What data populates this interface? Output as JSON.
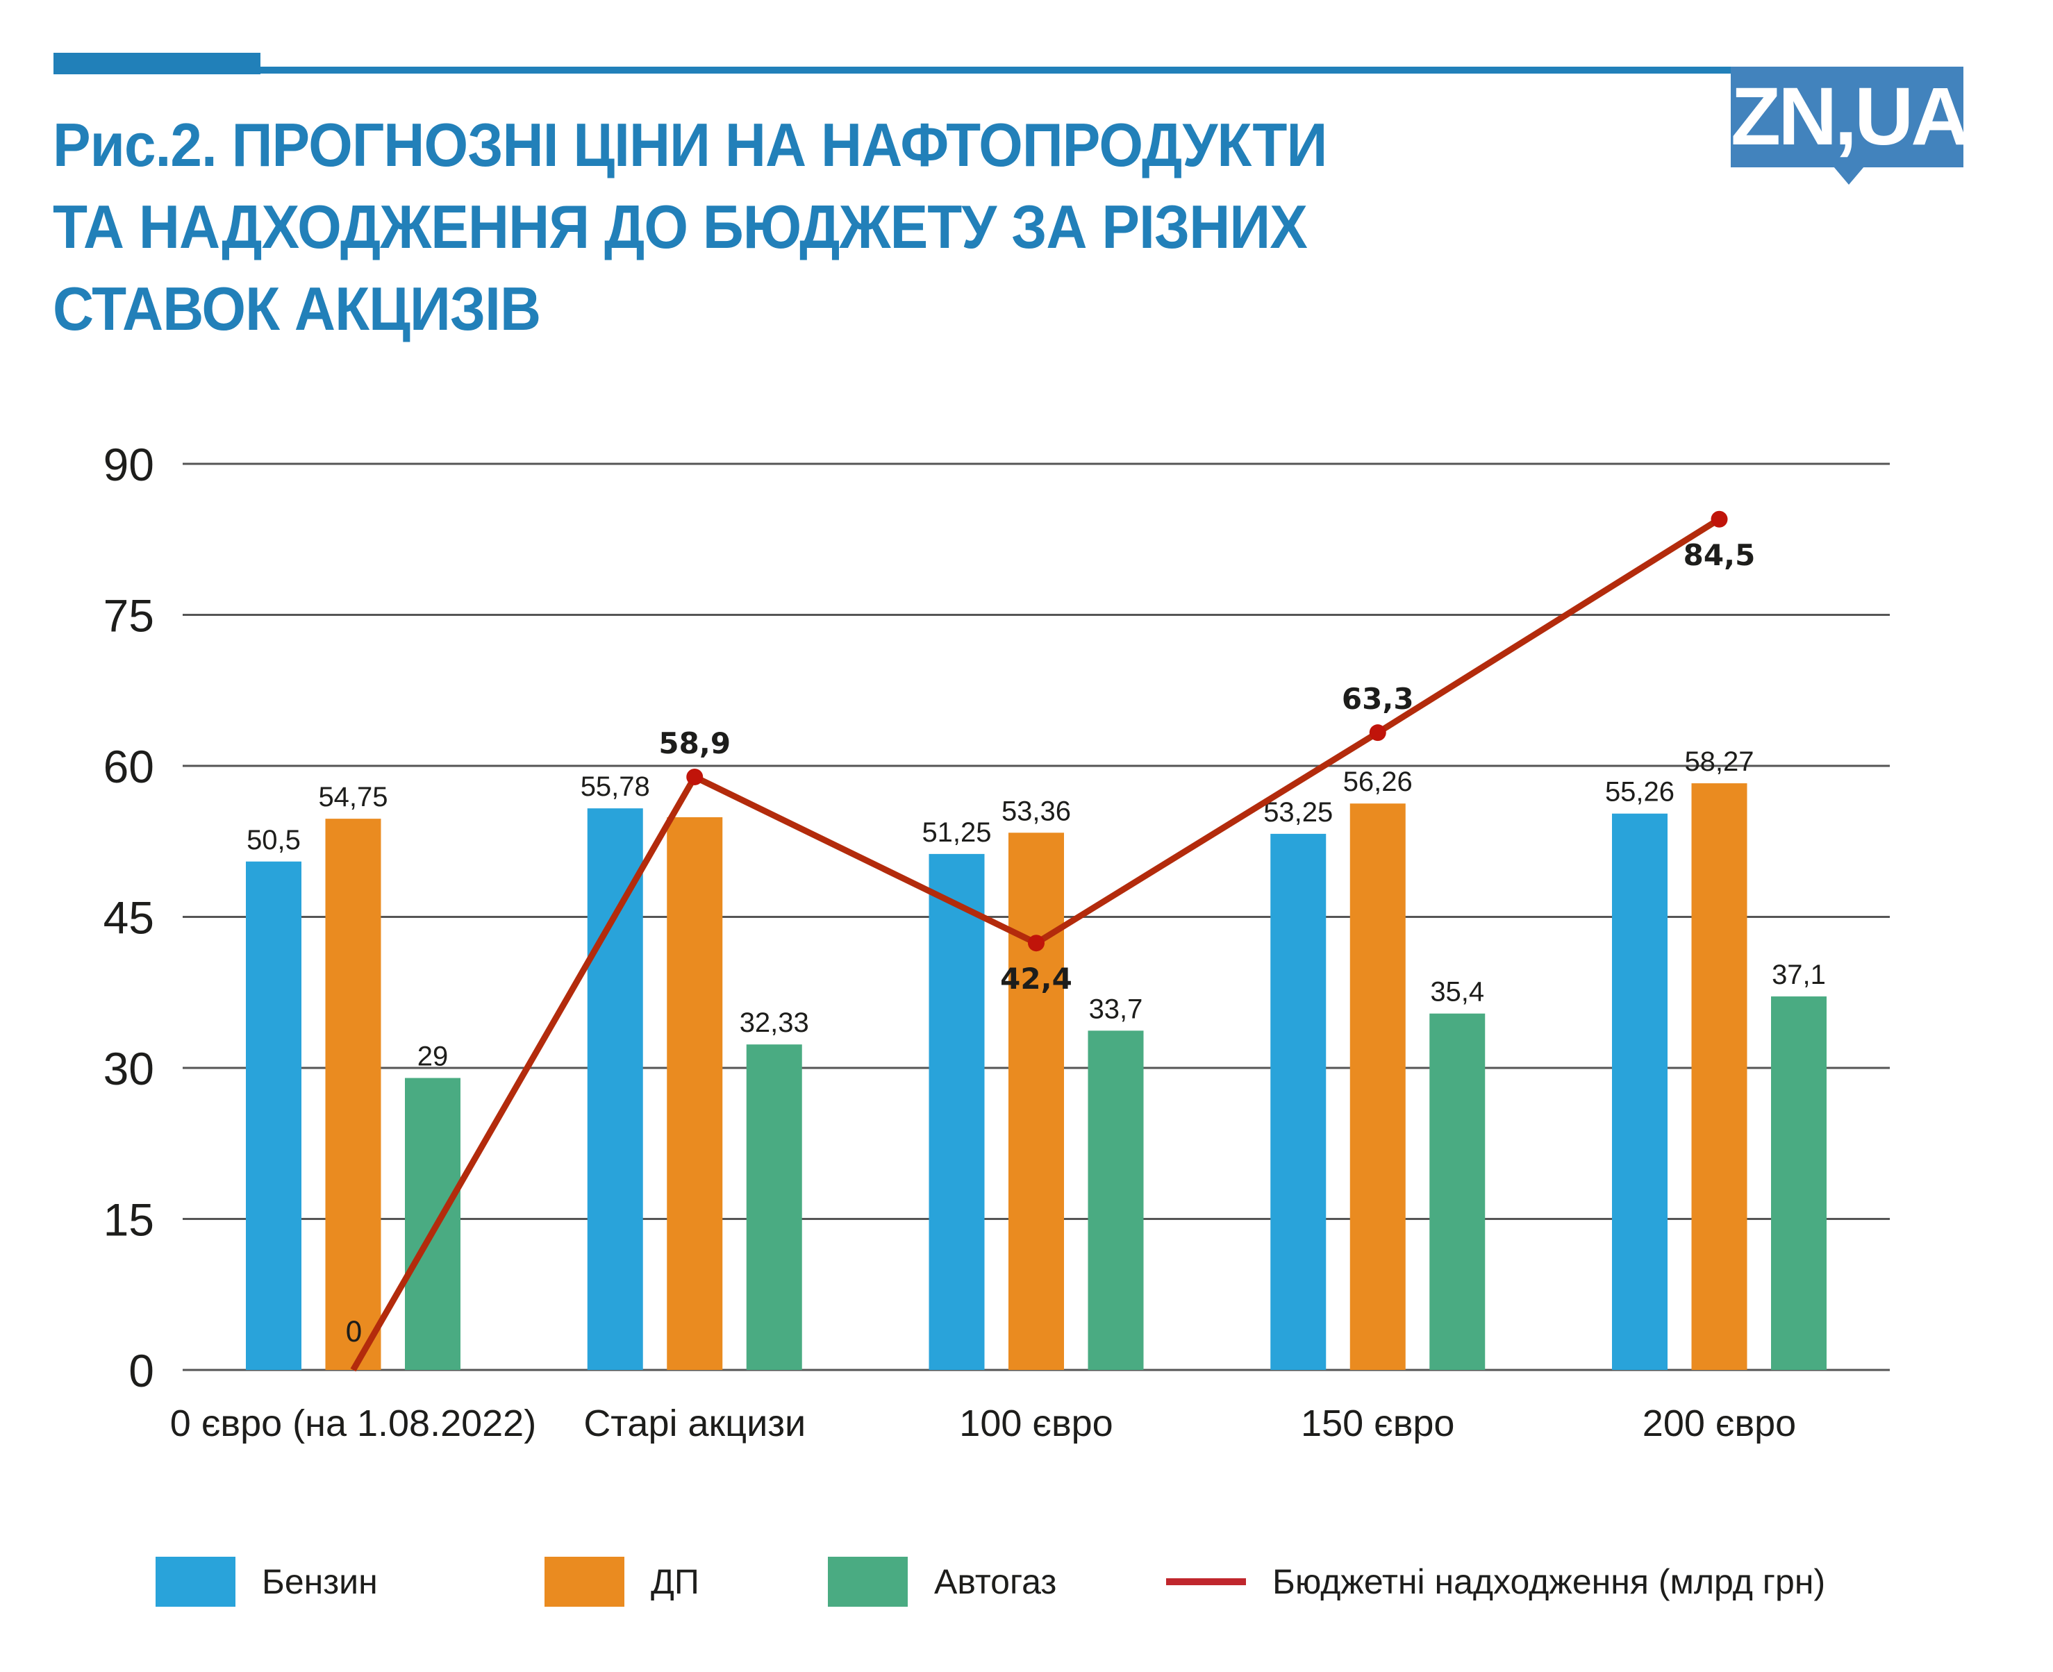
{
  "header": {
    "title_lines": [
      "Рис.2. ПРОГНОЗНІ ЦІНИ НА НАФТОПРОДУКТИ",
      "ТА НАДХОДЖЕННЯ ДО БЮДЖЕТУ ЗА РІЗНИХ",
      "СТАВОК АКЦИЗІВ"
    ],
    "logo_text": "ZN,UA"
  },
  "colors": {
    "title": "#2280b9",
    "benzin": "#29a3da",
    "dp": "#ea8b20",
    "autogas": "#4aab82",
    "budget_line": "#b32b0c",
    "budget_dot": "#c0140a",
    "grid": "#555555"
  },
  "chart_data": {
    "type": "bar",
    "title": "Рис.2. ПРОГНОЗНІ ЦІНИ НА НАФТОПРОДУКТИ ТА НАДХОДЖЕННЯ ДО БЮДЖЕТУ ЗА РІЗНИХ СТАВОК АКЦИЗІВ",
    "xlabel": "",
    "ylabel": "",
    "ylim": [
      0,
      90
    ],
    "yticks": [
      "0",
      "15",
      "30",
      "45",
      "60",
      "75",
      "90"
    ],
    "ytick_values": [
      0,
      15,
      30,
      45,
      60,
      75,
      90
    ],
    "grid": true,
    "legend_position": "bottom",
    "categories": [
      "0 євро (на 1.08.2022)",
      "Старі акцизи",
      "100 євро",
      "150 євро",
      "200 євро"
    ],
    "series": [
      {
        "name": "Бензин",
        "type": "bar",
        "color_key": "benzin",
        "values": [
          50.5,
          55.78,
          51.25,
          53.25,
          55.26
        ],
        "labels": [
          "50,5",
          "55,78",
          "51,25",
          "53,25",
          "55,26"
        ]
      },
      {
        "name": "ДП",
        "type": "bar",
        "color_key": "dp",
        "values": [
          54.75,
          54.9,
          53.36,
          56.26,
          58.27
        ],
        "labels": [
          "54,75",
          null,
          "53,36",
          "56,26",
          "58,27"
        ]
      },
      {
        "name": "Автогаз",
        "type": "bar",
        "color_key": "autogas",
        "values": [
          29,
          32.33,
          33.7,
          35.4,
          37.1
        ],
        "labels": [
          "29",
          "32,33",
          "33,7",
          "35,4",
          "37,1"
        ]
      },
      {
        "name": "Бюджетні надходження (млрд грн)",
        "type": "line",
        "color_key": "budget_line",
        "values": [
          0,
          58.9,
          42.4,
          63.3,
          84.5
        ],
        "labels": [
          "0",
          "58,9",
          "42,4",
          "63,3",
          "84,5"
        ],
        "label_positions": [
          "above",
          "above",
          "below",
          "above",
          "below"
        ]
      }
    ]
  },
  "legend": [
    {
      "label": "Бензин",
      "kind": "swatch",
      "color_key": "benzin"
    },
    {
      "label": "ДП",
      "kind": "swatch",
      "color_key": "dp"
    },
    {
      "label": "Автогаз",
      "kind": "swatch",
      "color_key": "autogas"
    },
    {
      "label": "Бюджетні надходження (млрд грн)",
      "kind": "line",
      "color_key": "budget_line"
    }
  ]
}
